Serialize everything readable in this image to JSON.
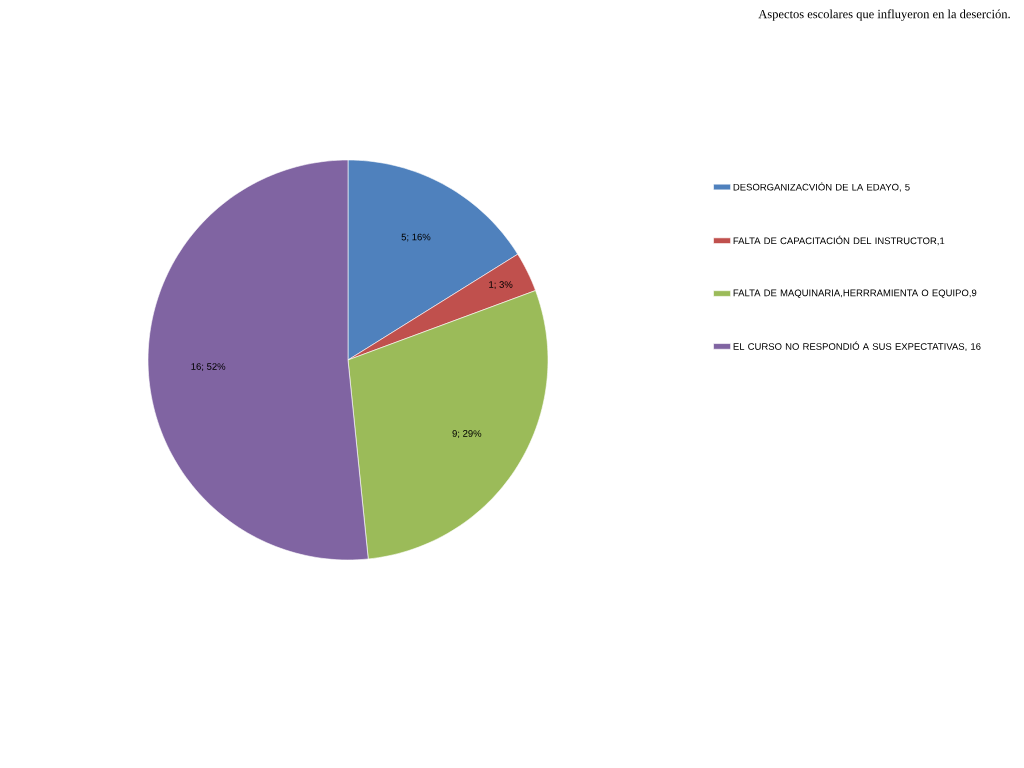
{
  "chart_data": {
    "type": "pie",
    "title": "Aspectos escolares que influyeron en la deserción.",
    "categories": [
      "DESORGANIZACVIÓN DE LA EDAYO, 5",
      "FALTA DE CAPACITACIÓN DEL INSTRUCTOR,1",
      "FALTA DE MAQUINARIA,HERRRAMIENTA O EQUIPO,9",
      "EL CURSO NO RESPONDIÓ A SUS EXPECTATIVAS, 16"
    ],
    "values": [
      5,
      1,
      9,
      16
    ],
    "colors": [
      "#4f81bd",
      "#c0504d",
      "#9bbb59",
      "#8064a2"
    ],
    "value_labels": [
      "5; 16%",
      "1; 3%",
      "9; 29%",
      "16; 52%"
    ],
    "legend": "right"
  }
}
